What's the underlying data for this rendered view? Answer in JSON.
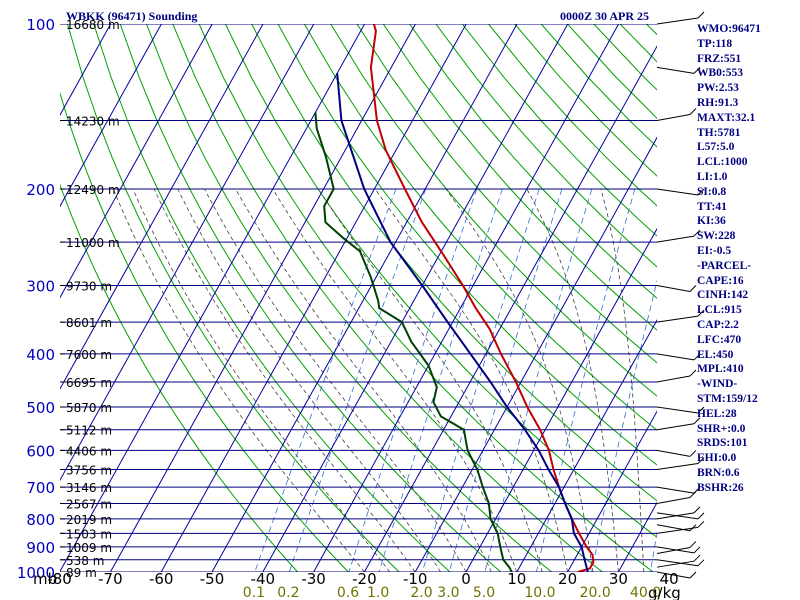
{
  "chart_data": {
    "type": "skew-t",
    "title": "WBKK (96471) Sounding",
    "valid_time": "0000Z 30 APR 25",
    "pressure_unit": "mb",
    "mixing_ratio_unit": "g/kg",
    "pressure_levels": [
      100,
      200,
      300,
      400,
      500,
      600,
      700,
      800,
      900,
      1000
    ],
    "pressure_labels": [
      "100",
      "200",
      "300",
      "400",
      "500",
      "600",
      "700",
      "800",
      "900",
      "1000"
    ],
    "temperature_ticks": [
      -80,
      -70,
      -60,
      -50,
      -40,
      -30,
      -20,
      -10,
      0,
      10,
      20,
      30,
      40
    ],
    "temperature_labels": [
      "-80",
      "-70",
      "-60",
      "-50",
      "-40",
      "-30",
      "-20",
      "-10",
      "0",
      "10",
      "20",
      "30",
      "40"
    ],
    "mixing_ratio_labels": [
      "0.1",
      "0.2",
      "0.6",
      "1.0",
      "2.0",
      "3.0",
      "5.0",
      "10.0",
      "20.0",
      "40.0"
    ],
    "height_levels": [
      {
        "p": 100,
        "text": "16680 m"
      },
      {
        "p": 150,
        "text": "14230 m"
      },
      {
        "p": 200,
        "text": "12490 m"
      },
      {
        "p": 250,
        "text": "11000 m"
      },
      {
        "p": 300,
        "text": "9730 m"
      },
      {
        "p": 350,
        "text": "8601 m"
      },
      {
        "p": 400,
        "text": "7600 m"
      },
      {
        "p": 450,
        "text": "6695 m"
      },
      {
        "p": 500,
        "text": "5870 m"
      },
      {
        "p": 550,
        "text": "5112 m"
      },
      {
        "p": 600,
        "text": "4406 m"
      },
      {
        "p": 650,
        "text": "3756 m"
      },
      {
        "p": 700,
        "text": "3146 m"
      },
      {
        "p": 750,
        "text": "2567 m"
      },
      {
        "p": 800,
        "text": "2019 m"
      },
      {
        "p": 850,
        "text": "1503 m"
      },
      {
        "p": 900,
        "text": "1009 m"
      },
      {
        "p": 950,
        "text": "538 m"
      },
      {
        "p": 1000,
        "text": "89 m"
      }
    ],
    "series": [
      {
        "key": "temperature",
        "color": "#c00000",
        "points": [
          [
            98,
            -79
          ],
          [
            103,
            -77
          ],
          [
            120,
            -74
          ],
          [
            150,
            -67
          ],
          [
            170,
            -62
          ],
          [
            200,
            -54
          ],
          [
            230,
            -47
          ],
          [
            260,
            -40
          ],
          [
            300,
            -32
          ],
          [
            330,
            -27
          ],
          [
            360,
            -22
          ],
          [
            400,
            -17
          ],
          [
            450,
            -11
          ],
          [
            500,
            -6
          ],
          [
            550,
            -1
          ],
          [
            600,
            3
          ],
          [
            650,
            6
          ],
          [
            700,
            9
          ],
          [
            750,
            12
          ],
          [
            800,
            15
          ],
          [
            850,
            18
          ],
          [
            900,
            21
          ],
          [
            930,
            23
          ],
          [
            960,
            24
          ],
          [
            985,
            24
          ],
          [
            1000,
            22
          ]
        ]
      },
      {
        "key": "dewpoint",
        "color": "#004000",
        "points": [
          [
            145,
            -80
          ],
          [
            155,
            -78
          ],
          [
            175,
            -73
          ],
          [
            200,
            -68
          ],
          [
            215,
            -68
          ],
          [
            230,
            -66
          ],
          [
            245,
            -61
          ],
          [
            260,
            -56
          ],
          [
            290,
            -51
          ],
          [
            320,
            -47
          ],
          [
            330,
            -46
          ],
          [
            350,
            -40
          ],
          [
            380,
            -36
          ],
          [
            420,
            -30
          ],
          [
            460,
            -26
          ],
          [
            490,
            -25
          ],
          [
            520,
            -22
          ],
          [
            550,
            -16
          ],
          [
            600,
            -13
          ],
          [
            650,
            -9
          ],
          [
            700,
            -6
          ],
          [
            750,
            -3
          ],
          [
            800,
            -1
          ],
          [
            850,
            2
          ],
          [
            900,
            4
          ],
          [
            950,
            6
          ],
          [
            980,
            8
          ],
          [
            1000,
            9
          ]
        ]
      },
      {
        "key": "parcel",
        "color": "#000080",
        "points": [
          [
            123,
            -80
          ],
          [
            150,
            -74
          ],
          [
            200,
            -62
          ],
          [
            250,
            -51
          ],
          [
            300,
            -40
          ],
          [
            350,
            -31
          ],
          [
            400,
            -23
          ],
          [
            450,
            -16
          ],
          [
            500,
            -10
          ],
          [
            550,
            -4
          ],
          [
            600,
            1
          ],
          [
            650,
            5
          ],
          [
            700,
            9
          ],
          [
            750,
            12
          ],
          [
            800,
            15
          ],
          [
            850,
            17
          ],
          [
            900,
            20
          ],
          [
            950,
            22
          ],
          [
            1000,
            24
          ]
        ]
      }
    ],
    "grid": true
  },
  "indices": [
    "WMO:96471",
    "TP:118",
    "FRZ:551",
    "WB0:553",
    "PW:2.53",
    "RH:91.3",
    "MAXT:32.1",
    "TH:5781",
    "L57:5.0",
    "LCL:1000",
    "LI:1.0",
    "SI:0.8",
    "TT:41",
    "KI:36",
    "SW:228",
    "EI:-0.5",
    "-PARCEL-",
    "CAPE:16",
    "CINH:142",
    "LCL:915",
    "CAP:2.2",
    "LFC:470",
    "EL:450",
    "MPL:410",
    "-WIND-",
    "STM:159/12",
    "HEL:28",
    "SHR+:0.0",
    "SRDS:101",
    "EHI:0.0",
    "BRN:0.6",
    "BSHR:26"
  ],
  "colors": {
    "isobar": "#000080",
    "isotherm": "#0000a0",
    "dry_adiabat": "#00a000",
    "moist_adiabat": "#404040",
    "mixing_ratio": "#3070d0",
    "text": "#000080"
  }
}
